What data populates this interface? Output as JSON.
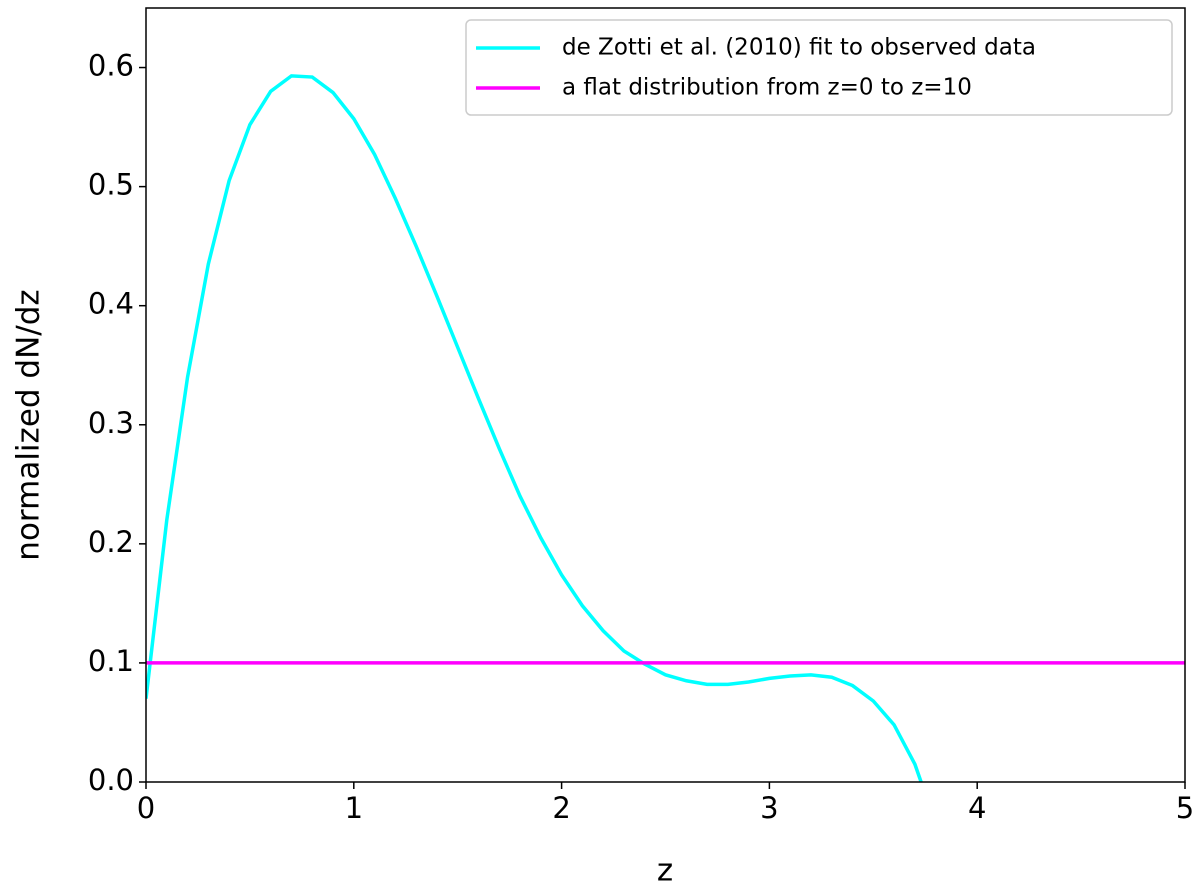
{
  "chart_data": {
    "type": "line",
    "xlabel": "z",
    "ylabel": "normalized dN/dz",
    "xlim": [
      0,
      5
    ],
    "ylim": [
      0,
      0.65
    ],
    "xticks": [
      0,
      1,
      2,
      3,
      4,
      5
    ],
    "yticks": [
      {
        "value": 0,
        "label": "0.0"
      },
      0.1,
      0.2,
      0.3,
      0.4,
      0.5,
      0.6
    ],
    "legend_position": "upper right",
    "series": [
      {
        "name": "de Zotti et al. (2010) fit to observed data",
        "color": "#00ffff",
        "x": [
          0,
          0.1,
          0.2,
          0.3,
          0.4,
          0.5,
          0.6,
          0.7,
          0.8,
          0.9,
          1.0,
          1.1,
          1.2,
          1.3,
          1.4,
          1.5,
          1.6,
          1.7,
          1.8,
          1.9,
          2.0,
          2.1,
          2.2,
          2.3,
          2.4,
          2.5,
          2.6,
          2.7,
          2.8,
          2.9,
          3.0,
          3.1,
          3.2,
          3.3,
          3.4,
          3.5,
          3.6,
          3.7,
          3.73
        ],
        "values": [
          0.07,
          0.22,
          0.34,
          0.435,
          0.505,
          0.552,
          0.58,
          0.593,
          0.592,
          0.579,
          0.557,
          0.527,
          0.49,
          0.45,
          0.408,
          0.365,
          0.322,
          0.28,
          0.24,
          0.205,
          0.174,
          0.148,
          0.127,
          0.11,
          0.099,
          0.09,
          0.085,
          0.082,
          0.082,
          0.084,
          0.087,
          0.089,
          0.09,
          0.088,
          0.081,
          0.068,
          0.048,
          0.015,
          0.0
        ]
      },
      {
        "name": "a flat distribution from z=0 to z=10",
        "color": "#ff00ff",
        "x": [
          0,
          5
        ],
        "values": [
          0.1,
          0.1
        ]
      }
    ]
  }
}
